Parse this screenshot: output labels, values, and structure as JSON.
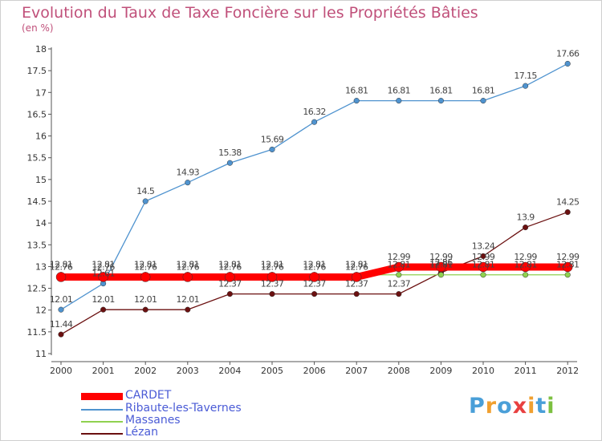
{
  "title": "Evolution du Taux de Taxe Foncière sur les Propriétés Bâties",
  "unit_label": "(en %)",
  "logo": {
    "text": "Proxiti",
    "letters": [
      "P",
      "r",
      "o",
      "x",
      "i",
      "t",
      "i"
    ],
    "letter_colors": [
      "#4a9fd8",
      "#f0a030",
      "#4a9fd8",
      "#e84040",
      "#f0a030",
      "#4a9fd8",
      "#7cc040"
    ]
  },
  "chart_data": {
    "type": "line",
    "title": "Evolution du Taux de Taxe Foncière sur les Propriétés Bâties",
    "ylabel": "(en %)",
    "xlabel": "",
    "x": [
      "2000",
      "2001",
      "2002",
      "2003",
      "2004",
      "2005",
      "2006",
      "2007",
      "2008",
      "2009",
      "2010",
      "2011",
      "2012"
    ],
    "ylim": [
      11,
      18
    ],
    "yticks": [
      "11",
      "11.5",
      "12",
      "12.5",
      "13",
      "13.5",
      "14",
      "14.5",
      "15",
      "15.5",
      "16",
      "16.5",
      "17",
      "17.5",
      "18"
    ],
    "grid": false,
    "legend_position": "bottom-left",
    "series": [
      {
        "name": "CARDET",
        "color": "#ff0000",
        "values": [
          12.76,
          12.76,
          12.76,
          12.76,
          12.76,
          12.76,
          12.76,
          12.76,
          12.99,
          12.99,
          12.99,
          12.99,
          12.99
        ],
        "labels": [
          "12.76",
          "12.76",
          "12.76",
          "12.76",
          "12.76",
          "12.76",
          "12.76",
          "12.76",
          "12.99",
          "12.99",
          "12.99",
          "12.99",
          "12.99"
        ]
      },
      {
        "name": "Ribaute-les-Tavernes",
        "color": "#4f93cf",
        "values": [
          12.01,
          12.61,
          14.5,
          14.93,
          15.38,
          15.69,
          16.32,
          16.81,
          16.81,
          16.81,
          16.81,
          17.15,
          17.66
        ],
        "labels": [
          "12.01",
          "12.61",
          "14.5",
          "14.93",
          "15.38",
          "15.69",
          "16.32",
          "16.81",
          "16.81",
          "16.81",
          "16.81",
          "17.15",
          "17.66"
        ]
      },
      {
        "name": "Massanes",
        "color": "#8fd14f",
        "values": [
          12.81,
          12.81,
          12.81,
          12.81,
          12.81,
          12.81,
          12.81,
          12.81,
          12.81,
          12.81,
          12.81,
          12.81,
          12.81
        ],
        "labels": [
          "12.81",
          "12.81",
          "12.81",
          "12.81",
          "12.81",
          "12.81",
          "12.81",
          "12.81",
          "12.81",
          "12.81",
          "12.81",
          "12.81",
          "12.81"
        ]
      },
      {
        "name": "Lézan",
        "color": "#6b1010",
        "values": [
          11.44,
          12.01,
          12.01,
          12.01,
          12.37,
          12.37,
          12.37,
          12.37,
          12.37,
          12.86,
          13.24,
          13.9,
          14.25
        ],
        "labels": [
          "11.44",
          "12.01",
          "12.01",
          "12.01",
          "12.37",
          "12.37",
          "12.37",
          "12.37",
          "12.37",
          "12.86",
          "13.24",
          "13.9",
          "14.25"
        ]
      }
    ]
  }
}
